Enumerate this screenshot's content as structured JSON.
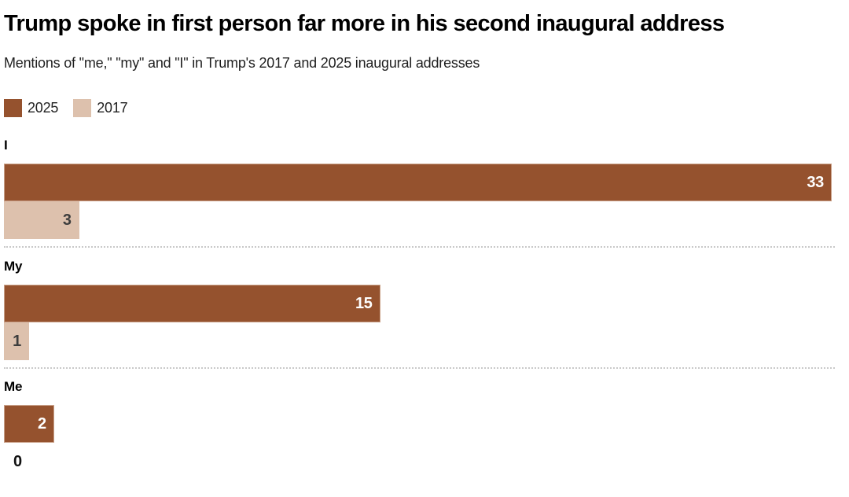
{
  "header": {
    "title": "Trump spoke in first person far more in his second inaugural address",
    "subtitle": "Mentions of \"me,\" \"my\" and \"I\" in Trump's 2017 and 2025 inaugural addresses"
  },
  "legend": {
    "items": [
      {
        "label": "2025",
        "color": "#95522e"
      },
      {
        "label": "2017",
        "color": "#ddc1ad"
      }
    ]
  },
  "colors": {
    "series_2025": "#95522e",
    "series_2017": "#ddc1ad",
    "value_label_on_dark": "#ffffff",
    "value_label_on_light": "#3d3d3d",
    "value_label_zero": "#111111",
    "separator_dotted": "#c9c9c9",
    "title_text": "#000000",
    "subtitle_text": "#1f1f1f"
  },
  "chart_data": {
    "type": "bar",
    "orientation": "horizontal",
    "title": "Trump spoke in first person far more in his second inaugural address",
    "subtitle": "Mentions of \"me,\" \"my\" and \"I\" in Trump's 2017 and 2025 inaugural addresses",
    "categories": [
      "I",
      "My",
      "Me"
    ],
    "series": [
      {
        "name": "2025",
        "color": "#95522e",
        "values": [
          33,
          15,
          2
        ]
      },
      {
        "name": "2017",
        "color": "#ddc1ad",
        "values": [
          3,
          1,
          0
        ]
      }
    ],
    "xlim": [
      0,
      33
    ],
    "xlabel": "",
    "ylabel": "",
    "grid": false,
    "legend_position": "top-left",
    "value_labels": "inside-end",
    "group_separator": "dotted-line"
  }
}
